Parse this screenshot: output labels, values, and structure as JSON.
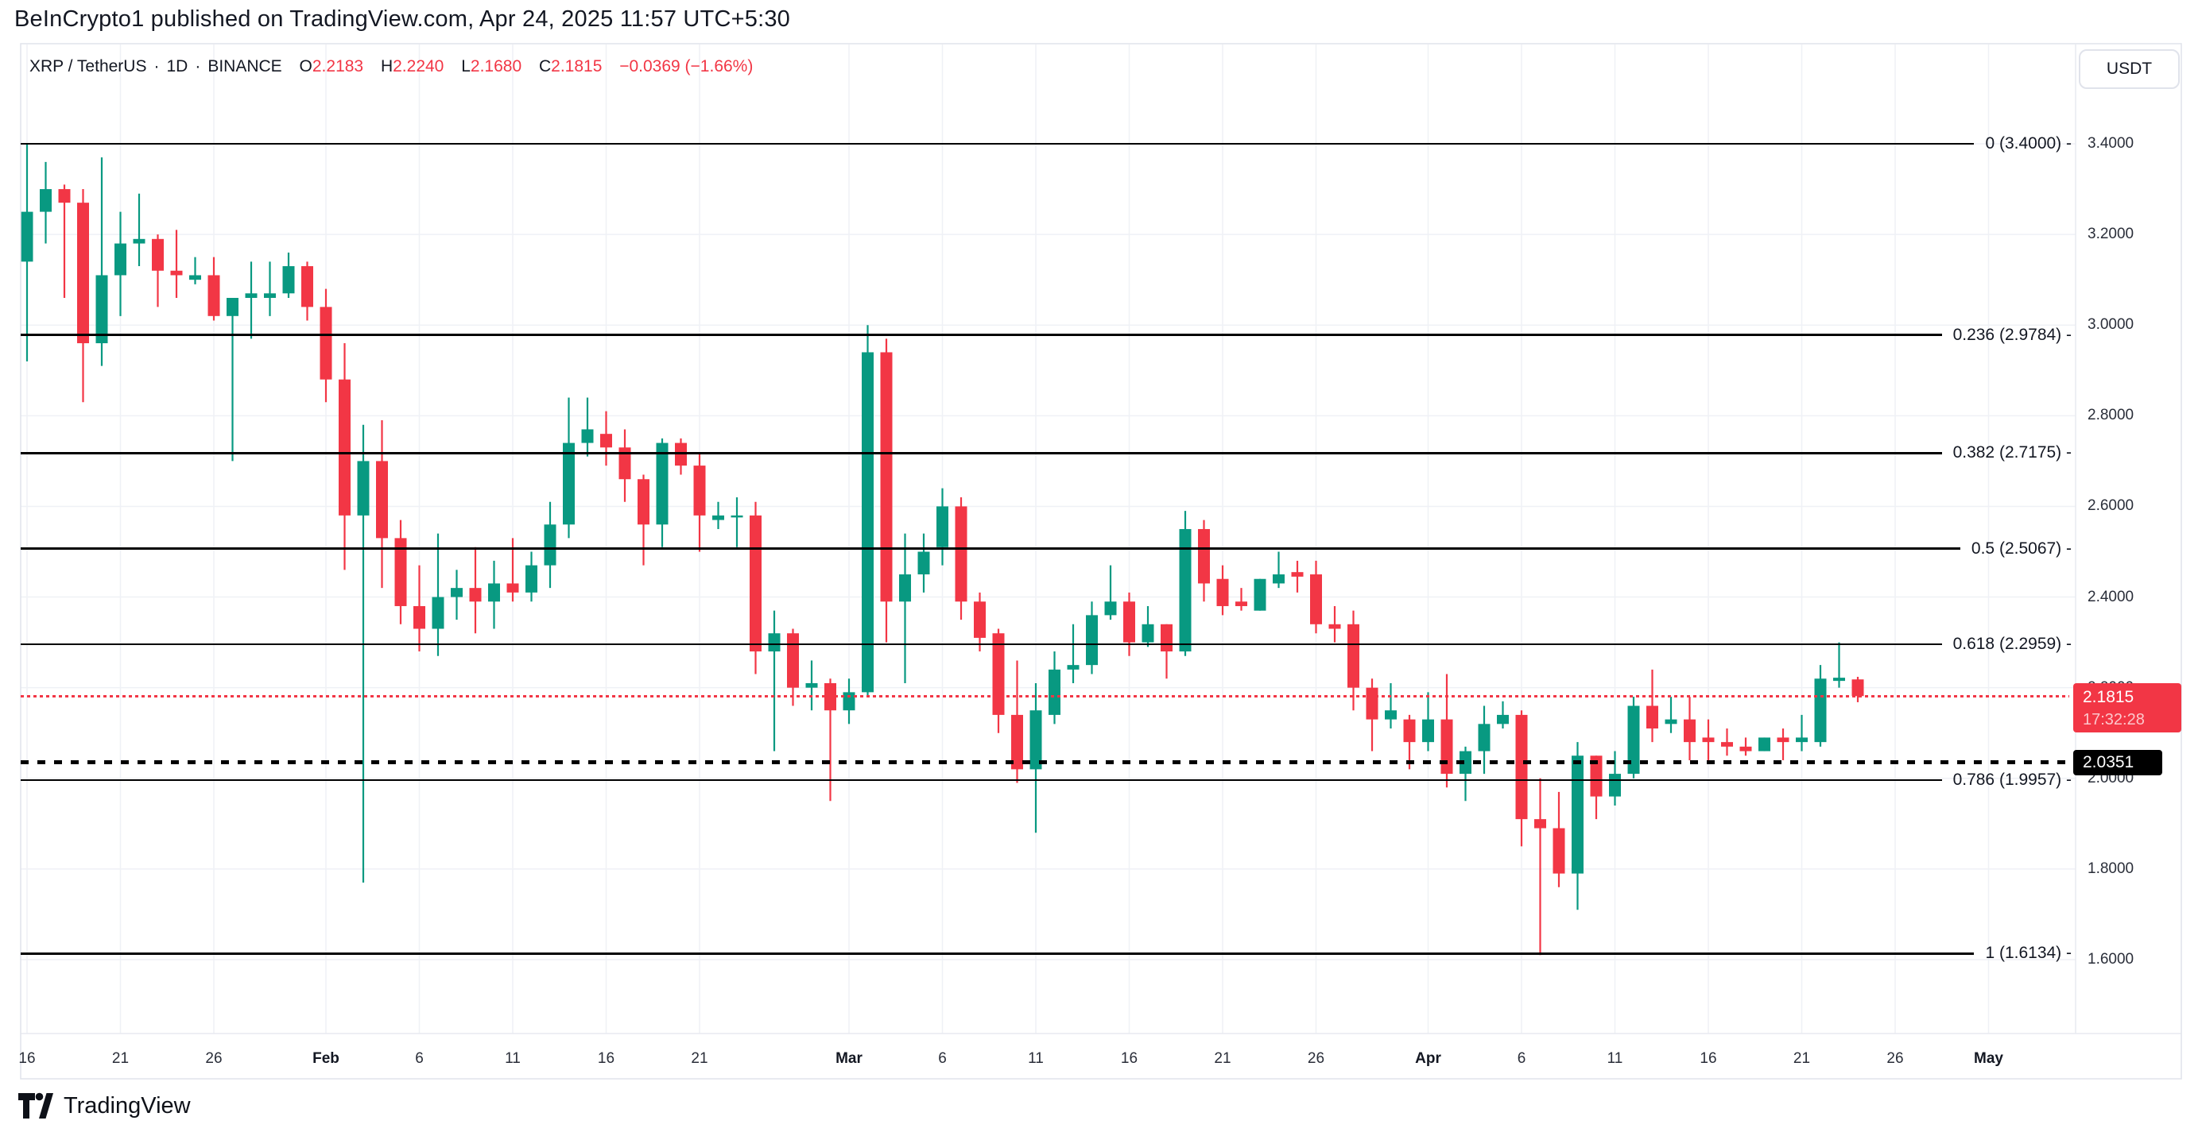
{
  "page": {
    "title": "BeInCrypto1 published on TradingView.com, Apr 24, 2025 11:57 UTC+5:30"
  },
  "toolbar": {
    "currency_label": "USDT"
  },
  "legend": {
    "symbol": "XRP / TetherUS",
    "sep": "·",
    "interval": "1D",
    "exchange": "BINANCE",
    "o_label": "O",
    "o": "2.2183",
    "h_label": "H",
    "h": "2.2240",
    "l_label": "L",
    "l": "2.1680",
    "c_label": "C",
    "c": "2.1815",
    "change": "−0.0369 (−1.66%)"
  },
  "footer": {
    "brand": "TradingView"
  },
  "chart_data": {
    "type": "candlestick",
    "title": "XRP / TetherUS 1D BINANCE",
    "ylim": [
      1.55,
      3.45
    ],
    "grid": true,
    "price_ticks": [
      "3.4000",
      "3.2000",
      "3.0000",
      "2.8000",
      "2.6000",
      "2.4000",
      "2.2000",
      "2.0000",
      "1.8000",
      "1.6000"
    ],
    "price_tick_values": [
      3.4,
      3.2,
      3.0,
      2.8,
      2.6,
      2.4,
      2.2,
      2.0,
      1.8,
      1.6
    ],
    "time_ticks": [
      {
        "d": 0,
        "label": "16"
      },
      {
        "d": 5,
        "label": "21"
      },
      {
        "d": 10,
        "label": "26"
      },
      {
        "d": 16,
        "label": "Feb",
        "bold": true
      },
      {
        "d": 21,
        "label": "6"
      },
      {
        "d": 26,
        "label": "11"
      },
      {
        "d": 31,
        "label": "16"
      },
      {
        "d": 36,
        "label": "21"
      },
      {
        "d": 44,
        "label": "Mar",
        "bold": true
      },
      {
        "d": 49,
        "label": "6"
      },
      {
        "d": 54,
        "label": "11"
      },
      {
        "d": 59,
        "label": "16"
      },
      {
        "d": 64,
        "label": "21"
      },
      {
        "d": 69,
        "label": "26"
      },
      {
        "d": 75,
        "label": "Apr",
        "bold": true
      },
      {
        "d": 80,
        "label": "6"
      },
      {
        "d": 85,
        "label": "11"
      },
      {
        "d": 90,
        "label": "16"
      },
      {
        "d": 95,
        "label": "21"
      },
      {
        "d": 100,
        "label": "26"
      },
      {
        "d": 105,
        "label": "May",
        "bold": true
      }
    ],
    "fib_levels": [
      {
        "label": "0 (3.4000) -",
        "price": 3.4
      },
      {
        "label": "0.236 (2.9784) -",
        "price": 2.9784
      },
      {
        "label": "0.382 (2.7175) -",
        "price": 2.7175
      },
      {
        "label": "0.5 (2.5067) -",
        "price": 2.5067
      },
      {
        "label": "0.618 (2.2959) -",
        "price": 2.2959
      },
      {
        "label": "0.786 (1.9957) -",
        "price": 1.9957
      },
      {
        "label": "1 (1.6134) -",
        "price": 1.6134
      }
    ],
    "current_price": {
      "value": "2.1815",
      "countdown": "17:32:28",
      "price": 2.1815
    },
    "low_marker": {
      "value": "2.0351",
      "price": 2.0351
    },
    "colors": {
      "up": "#089981",
      "down": "#f23645",
      "grid": "#eff1f6",
      "border": "#e0e3eb",
      "fib": "#000000",
      "axis_text": "#2a2e39"
    },
    "candles": [
      {
        "t": "Jan 16",
        "o": 3.14,
        "h": 3.4,
        "l": 2.92,
        "c": 3.25
      },
      {
        "t": "Jan 17",
        "o": 3.25,
        "h": 3.36,
        "l": 3.18,
        "c": 3.3
      },
      {
        "t": "Jan 18",
        "o": 3.3,
        "h": 3.31,
        "l": 3.06,
        "c": 3.27
      },
      {
        "t": "Jan 19",
        "o": 3.27,
        "h": 3.3,
        "l": 2.83,
        "c": 2.96
      },
      {
        "t": "Jan 20",
        "o": 2.96,
        "h": 3.37,
        "l": 2.91,
        "c": 3.11
      },
      {
        "t": "Jan 21",
        "o": 3.11,
        "h": 3.25,
        "l": 3.02,
        "c": 3.18
      },
      {
        "t": "Jan 22",
        "o": 3.18,
        "h": 3.29,
        "l": 3.13,
        "c": 3.19
      },
      {
        "t": "Jan 23",
        "o": 3.19,
        "h": 3.2,
        "l": 3.04,
        "c": 3.12
      },
      {
        "t": "Jan 24",
        "o": 3.12,
        "h": 3.21,
        "l": 3.06,
        "c": 3.11
      },
      {
        "t": "Jan 25",
        "o": 3.1,
        "h": 3.15,
        "l": 3.09,
        "c": 3.11
      },
      {
        "t": "Jan 26",
        "o": 3.11,
        "h": 3.15,
        "l": 3.01,
        "c": 3.02
      },
      {
        "t": "Jan 27",
        "o": 3.02,
        "h": 3.06,
        "l": 2.7,
        "c": 3.06
      },
      {
        "t": "Jan 28",
        "o": 3.06,
        "h": 3.14,
        "l": 2.97,
        "c": 3.07
      },
      {
        "t": "Jan 29",
        "o": 3.06,
        "h": 3.14,
        "l": 3.02,
        "c": 3.07
      },
      {
        "t": "Jan 30",
        "o": 3.07,
        "h": 3.16,
        "l": 3.06,
        "c": 3.13
      },
      {
        "t": "Jan 31",
        "o": 3.13,
        "h": 3.14,
        "l": 3.01,
        "c": 3.04
      },
      {
        "t": "Feb 1",
        "o": 3.04,
        "h": 3.08,
        "l": 2.83,
        "c": 2.88
      },
      {
        "t": "Feb 2",
        "o": 2.88,
        "h": 2.96,
        "l": 2.46,
        "c": 2.58
      },
      {
        "t": "Feb 3",
        "o": 2.58,
        "h": 2.78,
        "l": 1.77,
        "c": 2.7
      },
      {
        "t": "Feb 4",
        "o": 2.7,
        "h": 2.79,
        "l": 2.42,
        "c": 2.53
      },
      {
        "t": "Feb 5",
        "o": 2.53,
        "h": 2.57,
        "l": 2.34,
        "c": 2.38
      },
      {
        "t": "Feb 6",
        "o": 2.38,
        "h": 2.47,
        "l": 2.28,
        "c": 2.33
      },
      {
        "t": "Feb 7",
        "o": 2.33,
        "h": 2.54,
        "l": 2.27,
        "c": 2.4
      },
      {
        "t": "Feb 8",
        "o": 2.4,
        "h": 2.46,
        "l": 2.35,
        "c": 2.42
      },
      {
        "t": "Feb 9",
        "o": 2.42,
        "h": 2.51,
        "l": 2.32,
        "c": 2.39
      },
      {
        "t": "Feb 10",
        "o": 2.39,
        "h": 2.48,
        "l": 2.33,
        "c": 2.43
      },
      {
        "t": "Feb 11",
        "o": 2.43,
        "h": 2.53,
        "l": 2.39,
        "c": 2.41
      },
      {
        "t": "Feb 12",
        "o": 2.41,
        "h": 2.5,
        "l": 2.39,
        "c": 2.47
      },
      {
        "t": "Feb 13",
        "o": 2.47,
        "h": 2.61,
        "l": 2.42,
        "c": 2.56
      },
      {
        "t": "Feb 14",
        "o": 2.56,
        "h": 2.84,
        "l": 2.53,
        "c": 2.74
      },
      {
        "t": "Feb 15",
        "o": 2.74,
        "h": 2.84,
        "l": 2.71,
        "c": 2.77
      },
      {
        "t": "Feb 16",
        "o": 2.76,
        "h": 2.81,
        "l": 2.69,
        "c": 2.73
      },
      {
        "t": "Feb 17",
        "o": 2.73,
        "h": 2.77,
        "l": 2.61,
        "c": 2.66
      },
      {
        "t": "Feb 18",
        "o": 2.66,
        "h": 2.67,
        "l": 2.47,
        "c": 2.56
      },
      {
        "t": "Feb 19",
        "o": 2.56,
        "h": 2.75,
        "l": 2.51,
        "c": 2.74
      },
      {
        "t": "Feb 20",
        "o": 2.74,
        "h": 2.75,
        "l": 2.67,
        "c": 2.69
      },
      {
        "t": "Feb 21",
        "o": 2.69,
        "h": 2.72,
        "l": 2.5,
        "c": 2.58
      },
      {
        "t": "Feb 22",
        "o": 2.57,
        "h": 2.61,
        "l": 2.55,
        "c": 2.58
      },
      {
        "t": "Feb 23",
        "o": 2.58,
        "h": 2.62,
        "l": 2.51,
        "c": 2.58
      },
      {
        "t": "Feb 24",
        "o": 2.58,
        "h": 2.61,
        "l": 2.23,
        "c": 2.28
      },
      {
        "t": "Feb 25",
        "o": 2.28,
        "h": 2.37,
        "l": 2.06,
        "c": 2.32
      },
      {
        "t": "Feb 26",
        "o": 2.32,
        "h": 2.33,
        "l": 2.16,
        "c": 2.2
      },
      {
        "t": "Feb 27",
        "o": 2.2,
        "h": 2.26,
        "l": 2.15,
        "c": 2.21
      },
      {
        "t": "Feb 28",
        "o": 2.21,
        "h": 2.22,
        "l": 1.95,
        "c": 2.15
      },
      {
        "t": "Mar 1",
        "o": 2.15,
        "h": 2.22,
        "l": 2.12,
        "c": 2.19
      },
      {
        "t": "Mar 2",
        "o": 2.19,
        "h": 3.0,
        "l": 2.18,
        "c": 2.94
      },
      {
        "t": "Mar 3",
        "o": 2.94,
        "h": 2.97,
        "l": 2.3,
        "c": 2.39
      },
      {
        "t": "Mar 4",
        "o": 2.39,
        "h": 2.54,
        "l": 2.21,
        "c": 2.45
      },
      {
        "t": "Mar 5",
        "o": 2.45,
        "h": 2.54,
        "l": 2.41,
        "c": 2.5
      },
      {
        "t": "Mar 6",
        "o": 2.51,
        "h": 2.64,
        "l": 2.47,
        "c": 2.6
      },
      {
        "t": "Mar 7",
        "o": 2.6,
        "h": 2.62,
        "l": 2.35,
        "c": 2.39
      },
      {
        "t": "Mar 8",
        "o": 2.39,
        "h": 2.41,
        "l": 2.28,
        "c": 2.31
      },
      {
        "t": "Mar 9",
        "o": 2.32,
        "h": 2.33,
        "l": 2.1,
        "c": 2.14
      },
      {
        "t": "Mar 10",
        "o": 2.14,
        "h": 2.26,
        "l": 1.99,
        "c": 2.02
      },
      {
        "t": "Mar 11",
        "o": 2.02,
        "h": 2.21,
        "l": 1.88,
        "c": 2.15
      },
      {
        "t": "Mar 12",
        "o": 2.14,
        "h": 2.28,
        "l": 2.12,
        "c": 2.24
      },
      {
        "t": "Mar 13",
        "o": 2.24,
        "h": 2.34,
        "l": 2.21,
        "c": 2.25
      },
      {
        "t": "Mar 14",
        "o": 2.25,
        "h": 2.39,
        "l": 2.23,
        "c": 2.36
      },
      {
        "t": "Mar 15",
        "o": 2.36,
        "h": 2.47,
        "l": 2.35,
        "c": 2.39
      },
      {
        "t": "Mar 16",
        "o": 2.39,
        "h": 2.41,
        "l": 2.27,
        "c": 2.3
      },
      {
        "t": "Mar 17",
        "o": 2.3,
        "h": 2.38,
        "l": 2.29,
        "c": 2.34
      },
      {
        "t": "Mar 18",
        "o": 2.34,
        "h": 2.34,
        "l": 2.22,
        "c": 2.28
      },
      {
        "t": "Mar 19",
        "o": 2.28,
        "h": 2.59,
        "l": 2.27,
        "c": 2.55
      },
      {
        "t": "Mar 20",
        "o": 2.55,
        "h": 2.57,
        "l": 2.39,
        "c": 2.43
      },
      {
        "t": "Mar 21",
        "o": 2.44,
        "h": 2.47,
        "l": 2.36,
        "c": 2.38
      },
      {
        "t": "Mar 22",
        "o": 2.39,
        "h": 2.42,
        "l": 2.37,
        "c": 2.38
      },
      {
        "t": "Mar 23",
        "o": 2.37,
        "h": 2.44,
        "l": 2.37,
        "c": 2.44
      },
      {
        "t": "Mar 24",
        "o": 2.43,
        "h": 2.5,
        "l": 2.42,
        "c": 2.45
      },
      {
        "t": "Mar 25",
        "o": 2.455,
        "h": 2.48,
        "l": 2.41,
        "c": 2.445
      },
      {
        "t": "Mar 26",
        "o": 2.45,
        "h": 2.48,
        "l": 2.32,
        "c": 2.34
      },
      {
        "t": "Mar 27",
        "o": 2.34,
        "h": 2.38,
        "l": 2.3,
        "c": 2.33
      },
      {
        "t": "Mar 28",
        "o": 2.34,
        "h": 2.37,
        "l": 2.15,
        "c": 2.2
      },
      {
        "t": "Mar 29",
        "o": 2.2,
        "h": 2.22,
        "l": 2.06,
        "c": 2.13
      },
      {
        "t": "Mar 30",
        "o": 2.13,
        "h": 2.21,
        "l": 2.11,
        "c": 2.15
      },
      {
        "t": "Mar 31",
        "o": 2.13,
        "h": 2.14,
        "l": 2.02,
        "c": 2.08
      },
      {
        "t": "Apr 1",
        "o": 2.08,
        "h": 2.19,
        "l": 2.06,
        "c": 2.13
      },
      {
        "t": "Apr 2",
        "o": 2.13,
        "h": 2.23,
        "l": 1.98,
        "c": 2.01
      },
      {
        "t": "Apr 3",
        "o": 2.01,
        "h": 2.07,
        "l": 1.95,
        "c": 2.06
      },
      {
        "t": "Apr 4",
        "o": 2.06,
        "h": 2.16,
        "l": 2.01,
        "c": 2.12
      },
      {
        "t": "Apr 5",
        "o": 2.12,
        "h": 2.17,
        "l": 2.11,
        "c": 2.14
      },
      {
        "t": "Apr 6",
        "o": 2.14,
        "h": 2.15,
        "l": 1.85,
        "c": 1.91
      },
      {
        "t": "Apr 7",
        "o": 1.91,
        "h": 2.0,
        "l": 1.61,
        "c": 1.89
      },
      {
        "t": "Apr 8",
        "o": 1.89,
        "h": 1.97,
        "l": 1.76,
        "c": 1.79
      },
      {
        "t": "Apr 9",
        "o": 1.79,
        "h": 2.08,
        "l": 1.71,
        "c": 2.05
      },
      {
        "t": "Apr 10",
        "o": 2.05,
        "h": 2.05,
        "l": 1.91,
        "c": 1.96
      },
      {
        "t": "Apr 11",
        "o": 1.96,
        "h": 2.06,
        "l": 1.94,
        "c": 2.01
      },
      {
        "t": "Apr 12",
        "o": 2.01,
        "h": 2.18,
        "l": 2.0,
        "c": 2.16
      },
      {
        "t": "Apr 13",
        "o": 2.16,
        "h": 2.24,
        "l": 2.08,
        "c": 2.11
      },
      {
        "t": "Apr 14",
        "o": 2.12,
        "h": 2.18,
        "l": 2.1,
        "c": 2.13
      },
      {
        "t": "Apr 15",
        "o": 2.13,
        "h": 2.18,
        "l": 2.04,
        "c": 2.08
      },
      {
        "t": "Apr 16",
        "o": 2.09,
        "h": 2.13,
        "l": 2.04,
        "c": 2.08
      },
      {
        "t": "Apr 17",
        "o": 2.08,
        "h": 2.11,
        "l": 2.05,
        "c": 2.07
      },
      {
        "t": "Apr 18",
        "o": 2.07,
        "h": 2.09,
        "l": 2.05,
        "c": 2.06
      },
      {
        "t": "Apr 19",
        "o": 2.06,
        "h": 2.09,
        "l": 2.06,
        "c": 2.09
      },
      {
        "t": "Apr 20",
        "o": 2.09,
        "h": 2.11,
        "l": 2.04,
        "c": 2.08
      },
      {
        "t": "Apr 21",
        "o": 2.08,
        "h": 2.14,
        "l": 2.06,
        "c": 2.09
      },
      {
        "t": "Apr 22",
        "o": 2.08,
        "h": 2.25,
        "l": 2.07,
        "c": 2.22
      },
      {
        "t": "Apr 23",
        "o": 2.215,
        "h": 2.3,
        "l": 2.2,
        "c": 2.222
      },
      {
        "t": "Apr 24",
        "o": 2.2183,
        "h": 2.224,
        "l": 2.168,
        "c": 2.1815
      }
    ]
  }
}
